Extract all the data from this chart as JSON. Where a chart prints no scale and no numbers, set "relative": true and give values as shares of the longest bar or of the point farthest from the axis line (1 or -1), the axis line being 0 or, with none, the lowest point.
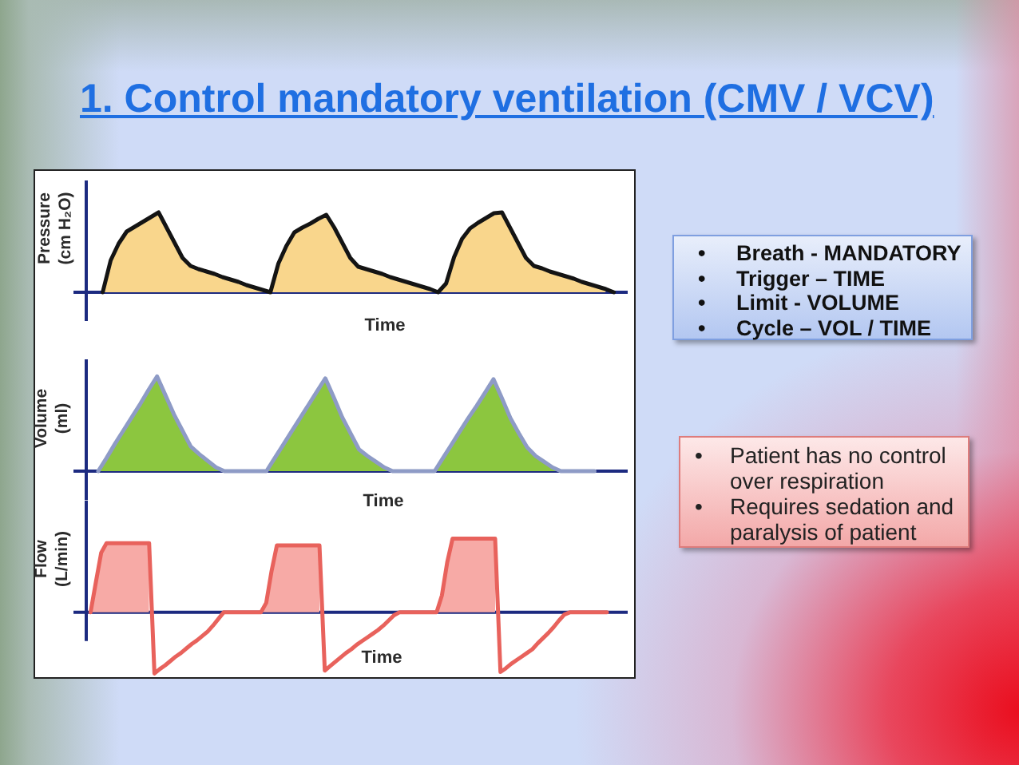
{
  "chart_data": [
    {
      "type": "other",
      "title": "1. Control mandatory ventilation (CMV / VCV)"
    },
    {
      "type": "area",
      "relative": true,
      "xlabel": "Time",
      "ylabel": "Pressure (cm H₂O)",
      "categories": [
        null,
        null,
        null,
        null,
        null,
        null,
        null,
        null,
        null,
        null,
        null,
        null,
        null,
        null,
        null,
        null,
        null,
        null,
        null,
        null,
        null,
        null,
        null,
        null,
        null,
        null,
        null,
        null,
        null,
        null,
        null,
        null,
        null,
        null,
        null,
        null,
        null,
        null,
        null,
        null,
        null,
        null,
        null,
        null,
        null,
        null,
        null,
        null,
        null,
        null,
        null,
        null,
        null,
        null,
        null,
        null,
        null,
        null,
        null,
        null,
        null,
        null,
        null,
        null,
        null
      ],
      "series": [
        {
          "type": "line",
          "color": "#141414",
          "values": [
            0,
            0.4,
            0.61,
            0.76,
            0.82,
            0.88,
            0.94,
            1,
            0.81,
            0.62,
            0.43,
            0.33,
            0.29,
            0.26,
            0.23,
            0.19,
            0.16,
            0.13,
            0.09,
            0.06,
            0.03,
            0,
            0.36,
            0.58,
            0.75,
            0.81,
            0.86,
            0.92,
            0.97,
            0.81,
            0.62,
            0.43,
            0.32,
            0.29,
            0.26,
            0.23,
            0.19,
            0.16,
            0.13,
            0.1,
            0.07,
            0.04,
            0,
            0.11,
            0.44,
            0.67,
            0.8,
            0.87,
            0.93,
            0.99,
            1,
            0.81,
            0.62,
            0.43,
            0.33,
            0.3,
            0.26,
            0.23,
            0.2,
            0.17,
            0.13,
            0.1,
            0.07,
            0.04,
            0
          ]
        },
        {
          "type": "area",
          "color": "#f9d68c",
          "values": [
            0,
            0.4,
            0.61,
            0.76,
            0.82,
            0.88,
            0.94,
            1,
            0.81,
            0.62,
            0.43,
            0.33,
            0.29,
            0.26,
            0.23,
            0.19,
            0.16,
            0.13,
            0.09,
            0.06,
            0.03,
            0,
            0.36,
            0.58,
            0.75,
            0.81,
            0.86,
            0.92,
            0.97,
            0.81,
            0.62,
            0.43,
            0.32,
            0.29,
            0.26,
            0.23,
            0.19,
            0.16,
            0.13,
            0.1,
            0.07,
            0.04,
            0,
            0.11,
            0.44,
            0.67,
            0.8,
            0.87,
            0.93,
            0.99,
            1,
            0.81,
            0.62,
            0.43,
            0.33,
            0.3,
            0.26,
            0.23,
            0.2,
            0.17,
            0.13,
            0.1,
            0.07,
            0.04,
            null
          ]
        }
      ]
    },
    {
      "type": "area",
      "relative": true,
      "xlabel": "Time",
      "ylabel": "Volume (ml)",
      "categories": [
        null,
        null,
        null,
        null,
        null,
        null,
        null,
        null,
        null,
        null,
        null,
        null,
        null,
        null,
        null,
        null,
        null,
        null,
        null,
        null,
        null,
        null,
        null,
        null,
        null,
        null,
        null,
        null,
        null,
        null,
        null,
        null,
        null,
        null,
        null,
        null,
        null,
        null,
        null,
        null,
        null,
        null,
        null,
        null,
        null,
        null,
        null,
        null,
        null,
        null,
        null,
        null,
        null,
        null,
        null,
        null,
        null,
        null,
        null,
        null
      ],
      "series": [
        {
          "type": "line",
          "color": "#8e9bc6",
          "values": [
            0,
            0.14,
            0.29,
            0.43,
            0.57,
            0.71,
            0.86,
            1,
            0.8,
            0.6,
            0.43,
            0.26,
            0.18,
            0.11,
            0.04,
            0,
            0,
            0,
            0,
            0,
            0,
            0.14,
            0.28,
            0.42,
            0.56,
            0.7,
            0.84,
            0.98,
            0.78,
            0.57,
            0.4,
            0.23,
            0.16,
            0.1,
            0.04,
            0,
            0,
            0,
            0,
            0,
            0,
            0.14,
            0.28,
            0.42,
            0.56,
            0.69,
            0.83,
            0.97,
            0.77,
            0.56,
            0.4,
            0.25,
            0.16,
            0.1,
            0.04,
            0,
            0,
            0,
            0,
            0
          ]
        },
        {
          "type": "area",
          "color": "#8cc63f",
          "values": [
            0,
            0.14,
            0.29,
            0.43,
            0.57,
            0.71,
            0.86,
            1,
            0.8,
            0.6,
            0.43,
            0.26,
            0.18,
            0.11,
            0.04,
            0,
            null,
            null,
            null,
            null,
            0,
            0.14,
            0.28,
            0.42,
            0.56,
            0.7,
            0.84,
            0.98,
            0.78,
            0.57,
            0.4,
            0.23,
            0.16,
            0.1,
            0.04,
            0,
            null,
            null,
            null,
            null,
            0,
            0.14,
            0.28,
            0.42,
            0.56,
            0.69,
            0.83,
            0.97,
            0.77,
            0.56,
            0.4,
            0.25,
            0.16,
            0.1,
            0.04,
            0,
            null,
            null,
            null,
            null
          ]
        }
      ]
    },
    {
      "type": "area",
      "relative": true,
      "xlabel": "Time",
      "ylabel": "Flow (L/min)",
      "categories": [
        null,
        null,
        null,
        null,
        null,
        null,
        null,
        null,
        null,
        null,
        null,
        null,
        null,
        null,
        null,
        null,
        null,
        null,
        null,
        null,
        null,
        null,
        null,
        null,
        null,
        null,
        null,
        null,
        null,
        null,
        null,
        null,
        null,
        null,
        null,
        null,
        null,
        null,
        null,
        null,
        null,
        null,
        null,
        null,
        null,
        null,
        null,
        null,
        null,
        null,
        null,
        null,
        null,
        null,
        null,
        null,
        null,
        null,
        null,
        null,
        null,
        null,
        null,
        null,
        null,
        null,
        null,
        null,
        null,
        null,
        null,
        null,
        null,
        null,
        null,
        null,
        null,
        null,
        null,
        null,
        null,
        null,
        null,
        null,
        null,
        null,
        null,
        null,
        null,
        null,
        null,
        null,
        null,
        null,
        null,
        null,
        null,
        null
      ],
      "series": [
        {
          "type": "line",
          "color": "#e8625c",
          "values": [
            0,
            0.41,
            0.81,
            0.94,
            0.94,
            0.94,
            0.94,
            0.94,
            0.94,
            0.94,
            0.94,
            0.94,
            -0.83,
            -0.77,
            -0.72,
            -0.66,
            -0.6,
            -0.55,
            -0.49,
            -0.43,
            -0.38,
            -0.32,
            -0.26,
            -0.18,
            -0.09,
            0,
            0,
            0,
            0,
            0,
            0,
            0,
            0,
            0.13,
            0.56,
            0.91,
            0.91,
            0.91,
            0.91,
            0.91,
            0.91,
            0.91,
            0.91,
            0.91,
            -0.79,
            -0.73,
            -0.67,
            -0.61,
            -0.55,
            -0.5,
            -0.44,
            -0.39,
            -0.34,
            -0.29,
            -0.24,
            -0.18,
            -0.11,
            -0.04,
            0,
            0,
            0,
            0,
            0,
            0,
            0,
            0,
            0.23,
            0.68,
            1,
            1,
            1,
            1,
            1,
            1,
            1,
            1,
            1,
            -0.81,
            -0.76,
            -0.7,
            -0.65,
            -0.6,
            -0.55,
            -0.5,
            -0.42,
            -0.35,
            -0.28,
            -0.2,
            -0.11,
            -0.03,
            0,
            0,
            0,
            0,
            0,
            0,
            0,
            0
          ]
        },
        {
          "type": "area",
          "color": "#f7aaa6",
          "values": [
            0,
            0.41,
            0.81,
            0.94,
            0.94,
            0.94,
            0.94,
            0.94,
            0.94,
            0.94,
            0.94,
            0.94,
            null,
            null,
            null,
            null,
            null,
            null,
            null,
            null,
            null,
            null,
            null,
            null,
            null,
            null,
            null,
            null,
            null,
            null,
            null,
            null,
            0,
            0.13,
            0.56,
            0.91,
            0.91,
            0.91,
            0.91,
            0.91,
            0.91,
            0.91,
            0.91,
            0.91,
            null,
            null,
            null,
            null,
            null,
            null,
            null,
            null,
            null,
            null,
            null,
            null,
            null,
            null,
            null,
            null,
            null,
            null,
            null,
            null,
            null,
            0,
            0.23,
            0.68,
            1,
            1,
            1,
            1,
            1,
            1,
            1,
            1,
            1,
            null,
            null,
            null,
            null,
            null,
            null,
            null,
            null,
            null,
            null,
            null,
            null,
            null,
            null,
            null,
            null,
            null,
            null,
            null,
            null,
            null
          ]
        }
      ],
      "ref_lines": [
        {
          "axis": "y",
          "value": 0,
          "color": "#1c2a80"
        }
      ]
    },
    {
      "type": "other",
      "annotations": [
        "• Breath - MANDATORY",
        "• Trigger – TIME",
        "• Limit - VOLUME",
        "• Cycle – VOL / TIME"
      ]
    },
    {
      "type": "other",
      "annotations": [
        "• Patient has no control over respiration",
        "• Requires sedation and paralysis of patient"
      ]
    }
  ]
}
